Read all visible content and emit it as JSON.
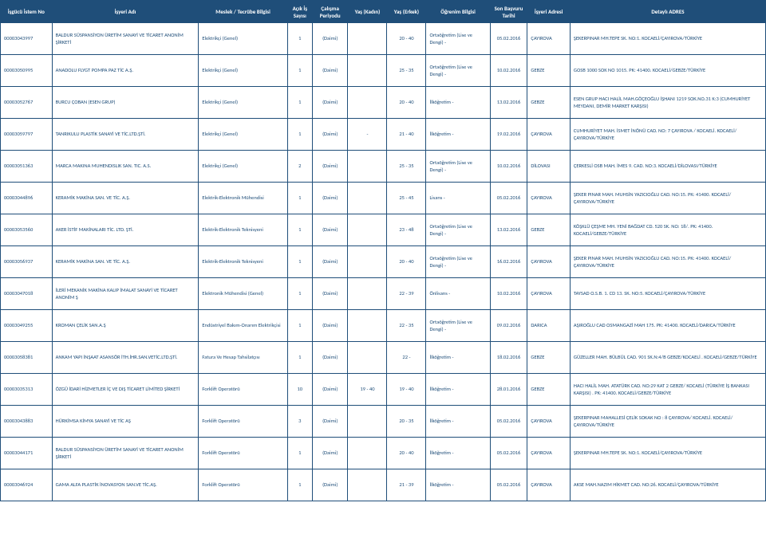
{
  "table": {
    "header_bg": "#1f4e79",
    "header_fg": "#ffffff",
    "cell_fg": "#1f4e79",
    "border_color": "#1f4e79",
    "columns": [
      "İşgücü İstem No",
      "İşyeri Adı",
      "Meslek / Tecrübe Bilgisi",
      "Açık İş Sayısı",
      "Çalışma Periyodu",
      "Yaş (Kadın)",
      "Yaş (Erkek)",
      "Öğrenim Bilgisi",
      "Son Başvuru Tarihi",
      "İşyeri Adresi",
      "Detaylı ADRES"
    ],
    "rows": [
      {
        "istem": "00003043997",
        "isyeri": "BALDUR SÜSPANSİYON ÜRETİM SANAYİ VE TİCARET ANONİM ŞİRKETİ",
        "meslek": "Elektrikçi (Genel)",
        "sayi": "1",
        "periyod": "(Daimi)",
        "kadin": "",
        "erkek": "20 - 40",
        "ogrenim": "Ortaöğretim (Lise ve Dengi) -",
        "tarih": "05.02.2016",
        "adres": "ÇAYIROVA",
        "detay": "ŞEKERPINAR MH.TEPE SK. NO:1. KOCAELİ/ÇAYIROVA/TÜRKİYE"
      },
      {
        "istem": "00003050995",
        "isyeri": "ANADOLU FLYGT POMPA PAZ TİC A.Ş.",
        "meslek": "Elektrikçi (Genel)",
        "sayi": "1",
        "periyod": "(Daimi)",
        "kadin": "",
        "erkek": "25 - 35",
        "ogrenim": "Ortaöğretim (Lise ve Dengi) -",
        "tarih": "10.02.2016",
        "adres": "GEBZE",
        "detay": "GOSB 1000 SOK NO 1015. PK: 41400. KOCAELİ/GEBZE/TÜRKİYE"
      },
      {
        "istem": "00003052767",
        "isyeri": "BURCU ÇOBAN (ESEN GRUP)",
        "meslek": "Elektrikçi (Genel)",
        "sayi": "1",
        "periyod": "(Daimi)",
        "kadin": "",
        "erkek": "20 - 40",
        "ogrenim": "İlköğretim -",
        "tarih": "13.02.2016",
        "adres": "GEBZE",
        "detay": "ESEN GRUP HACI HALİL MAH.GÖÇEOĞLU İŞHANI 1219 SOK.NO.31 K:3 (CUMHURİYET MEYDANI, DEMİR MARKET KARŞISI)"
      },
      {
        "istem": "00003059797",
        "isyeri": "TANRIKULU PLASTİK SANAYİ VE TİC.LTD.ŞTİ.",
        "meslek": "Elektrikçi (Genel)",
        "sayi": "1",
        "periyod": "(Daimi)",
        "kadin": "-",
        "erkek": "21 - 40",
        "ogrenim": "İlköğretim -",
        "tarih": "19.02.2016",
        "adres": "ÇAYIROVA",
        "detay": "CUMHURİYET MAH. İSMET İNÖNÜ CAD. NO: 7 ÇAYIROVA / KOCAELİ. KOCAELİ/ÇAYIROVA/TÜRKİYE"
      },
      {
        "istem": "00003051363",
        "isyeri": "MARCA MAKINA MUHENDISLIK SAN. TIC. A.S.",
        "meslek": "Elektrikçi (Genel)",
        "sayi": "2",
        "periyod": "(Daimi)",
        "kadin": "",
        "erkek": "25 - 35",
        "ogrenim": "Ortaöğretim (Lise ve Dengi) -",
        "tarih": "10.02.2016",
        "adres": "DİLOVASI",
        "detay": "ÇERKESLİ OSB MAH. İMES 9. CAD. NO:3. KOCAELİ/DİLOVASI/TÜRKİYE"
      },
      {
        "istem": "00003044896",
        "isyeri": "KERAMİK MAKİNA SAN. VE TİC. A.Ş.",
        "meslek": "Elektrik-Elektronik Mühendisi",
        "sayi": "1",
        "periyod": "(Daimi)",
        "kadin": "",
        "erkek": "25 - 45",
        "ogrenim": "Lisans -",
        "tarih": "05.02.2016",
        "adres": "ÇAYIROVA",
        "detay": "ŞEKER PINAR MAH. MUHSİN YAZICIOĞLU CAD. NO:15. PK: 41400. KOCAELİ/ÇAYIROVA/TÜRKİYE"
      },
      {
        "istem": "00003053560",
        "isyeri": "AKER İSTİF MAKİNALARI TİC. LTD. ŞTİ.",
        "meslek": "Elektrik-Elektronik Teknisyeni",
        "sayi": "1",
        "periyod": "(Daimi)",
        "kadin": "",
        "erkek": "23 - 48",
        "ogrenim": "Ortaöğretim (Lise ve Dengi) -",
        "tarih": "13.02.2016",
        "adres": "GEBZE",
        "detay": "KÖŞKLÜ ÇEŞME MH. YENİ BAĞDAT CD. 520 SK. NO: 18/. PK: 41400. KOCAELİ/GEBZE/TÜRKİYE"
      },
      {
        "istem": "00003056937",
        "isyeri": "KERAMİK MAKİNA SAN. VE TİC. A.Ş.",
        "meslek": "Elektrik-Elektronik Teknisyeni",
        "sayi": "1",
        "periyod": "(Daimi)",
        "kadin": "",
        "erkek": "20 - 40",
        "ogrenim": "Ortaöğretim (Lise ve Dengi) -",
        "tarih": "16.02.2016",
        "adres": "ÇAYIROVA",
        "detay": "ŞEKER PINAR MAH. MUHSİN YAZICIOĞLU CAD. NO:15. PK: 41400. KOCAELİ/ÇAYIROVA/TÜRKİYE"
      },
      {
        "istem": "00003047018",
        "isyeri": "İLERİ MEKANİK MAKİNA KALIP İMALAT SANAYİ VE TİCARET ANONİM Ş",
        "meslek": "Elektronik Mühendisi (Genel)",
        "sayi": "1",
        "periyod": "(Daimi)",
        "kadin": "",
        "erkek": "22 - 39",
        "ogrenim": "Önlisans -",
        "tarih": "10.02.2016",
        "adres": "ÇAYIROVA",
        "detay": "TAYSAD O.S.B. 1. CD 13. SK. NO:5. KOCAELİ/ÇAYIROVA/TÜRKİYE"
      },
      {
        "istem": "00003049255",
        "isyeri": "KROMAN ÇELİK SAN.A.Ş",
        "meslek": "Endüstriyel Bakım-Onarım Elektrikçisi",
        "sayi": "1",
        "periyod": "(Daimi)",
        "kadin": "",
        "erkek": "22 - 35",
        "ogrenim": "Ortaöğretim (Lise ve Dengi) -",
        "tarih": "09.02.2016",
        "adres": "DARICA",
        "detay": "AŞIROĞLU CAD OSMANGAZİ MAH 175. PK: 41400. KOCAELİ/DARICA/TÜRKİYE"
      },
      {
        "istem": "00003058381",
        "isyeri": "ANKAM YAPI İNŞAAT ASANSÖR İTH.İHR.SAN.VETİC.LTD.ŞTİ.",
        "meslek": "Fatura Ve Hesap Tahsilatçısı",
        "sayi": "1",
        "periyod": "(Daimi)",
        "kadin": "",
        "erkek": "22 -",
        "ogrenim": "İlköğretim -",
        "tarih": "18.02.2016",
        "adres": "GEBZE",
        "detay": "GÜZELLER MAH. BÜLBÜL CAD. 901 SK.N:4/B GEBZE/KOCAELİ . KOCAELİ/GEBZE/TÜRKİYE"
      },
      {
        "istem": "00003035313",
        "isyeri": "ÖZGÜ İDARİ HİZMETLER İÇ VE DIŞ TİCARET LİMİTED ŞİRKETİ",
        "meslek": "Forklift Operatörü",
        "sayi": "10",
        "periyod": "(Daimi)",
        "kadin": "19 - 40",
        "erkek": "19 - 40",
        "ogrenim": "İlköğretim -",
        "tarih": "28.01.2016",
        "adres": "GEBZE",
        "detay": "HACI HALİL MAH. ATATÜRK CAD. NO:29 KAT 2 GEBZE/ KOCAELİ  (TÜRKİYE İŞ BANKASI KARŞISI) . PK: 41400. KOCAELİ/GEBZE/TÜRKİYE"
      },
      {
        "istem": "00003043883",
        "isyeri": "HÜRKİMSA KİMYA SANAYİ VE TİC AŞ",
        "meslek": "Forklift Operatörü",
        "sayi": "3",
        "periyod": "(Daimi)",
        "kadin": "",
        "erkek": "20 - 35",
        "ogrenim": "İlköğretim -",
        "tarih": "05.02.2016",
        "adres": "ÇAYIROVA",
        "detay": "ŞEKERPINAR MAHALLESİ ÇELİK SOKAK NO : 8 ÇAYIROVA/ KOCAELİ. KOCAELİ/ÇAYIROVA/TÜRKİYE"
      },
      {
        "istem": "00003044171",
        "isyeri": "BALDUR SÜSPANSİYON ÜRETİM SANAYİ VE TİCARET ANONİM ŞİRKETİ",
        "meslek": "Forklift Operatörü",
        "sayi": "1",
        "periyod": "(Daimi)",
        "kadin": "",
        "erkek": "20 - 40",
        "ogrenim": "İlköğretim -",
        "tarih": "05.02.2016",
        "adres": "ÇAYIROVA",
        "detay": "ŞEKERPINAR MH.TEPE SK. NO:1. KOCAELİ/ÇAYIROVA/TÜRKİYE"
      },
      {
        "istem": "00003046924",
        "isyeri": "GAMA ALFA PLASTİK İNOVASYON SAN.VE TİC.AŞ.",
        "meslek": "Forklift Operatörü",
        "sayi": "1",
        "periyod": "(Daimi)",
        "kadin": "",
        "erkek": "21 - 39",
        "ogrenim": "İlköğretim -",
        "tarih": "05.02.2016",
        "adres": "ÇAYIROVA",
        "detay": "AKSE MAH.NAZIM HİKMET CAD. NO:26. KOCAELİ/ÇAYIROVA/TÜRKİYE"
      }
    ]
  }
}
